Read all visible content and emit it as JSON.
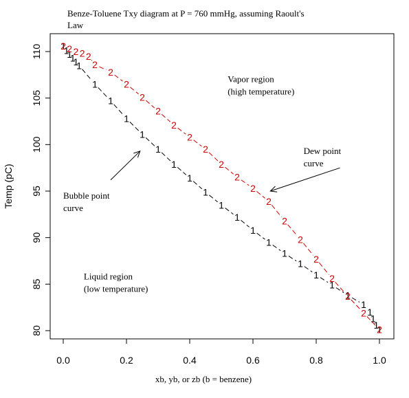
{
  "chart_data": {
    "type": "line",
    "title": "Benze-Toluene Txy diagram at P = 760 mmHg, assuming Raoult's Law",
    "title_lines": [
      "Benze-Toluene Txy diagram at P = 760 mmHg, assuming Raoult's",
      "Law"
    ],
    "xlabel": "xb, yb, or zb (b = benzene)",
    "ylabel": "Temp (pC)",
    "xlim": [
      0,
      1
    ],
    "ylim": [
      79.4,
      111
    ],
    "x_ticks": [
      0.0,
      0.2,
      0.4,
      0.6,
      0.8,
      1.0
    ],
    "x_tick_labels": [
      "0.0",
      "0.2",
      "0.4",
      "0.6",
      "0.8",
      "1.0"
    ],
    "y_ticks": [
      80,
      85,
      90,
      95,
      100,
      105,
      110
    ],
    "y_tick_labels": [
      "80",
      "85",
      "90",
      "95",
      "100",
      "105",
      "110"
    ],
    "grid": false,
    "series": [
      {
        "marker": "1",
        "color": "#000000",
        "linestyle": "dashed",
        "x": [
          0.0,
          0.01,
          0.02,
          0.03,
          0.04,
          0.05,
          0.1,
          0.15,
          0.2,
          0.25,
          0.3,
          0.35,
          0.4,
          0.45,
          0.5,
          0.55,
          0.6,
          0.65,
          0.7,
          0.75,
          0.8,
          0.85,
          0.9,
          0.95,
          0.97,
          0.98,
          0.99,
          1.0
        ],
        "y": [
          110.6,
          110.1,
          109.7,
          109.3,
          108.9,
          108.5,
          106.5,
          104.7,
          102.8,
          101.1,
          99.5,
          97.9,
          96.4,
          94.9,
          93.5,
          92.2,
          90.8,
          89.5,
          88.3,
          87.2,
          86.0,
          84.9,
          83.8,
          82.8,
          82.0,
          81.3,
          80.6,
          80.1
        ]
      },
      {
        "marker": "2",
        "color": "#cc0000",
        "linestyle": "dashed",
        "x": [
          0.0,
          0.02,
          0.04,
          0.06,
          0.08,
          0.1,
          0.15,
          0.2,
          0.25,
          0.3,
          0.35,
          0.4,
          0.45,
          0.5,
          0.55,
          0.6,
          0.65,
          0.7,
          0.75,
          0.8,
          0.85,
          0.9,
          0.95,
          1.0
        ],
        "y": [
          110.6,
          110.3,
          110.0,
          109.8,
          109.5,
          108.6,
          107.8,
          106.5,
          105.1,
          103.6,
          102.1,
          100.8,
          99.5,
          97.9,
          96.5,
          95.3,
          93.9,
          91.8,
          89.8,
          87.7,
          85.6,
          83.7,
          81.9,
          80.1
        ]
      }
    ],
    "annotations": [
      {
        "lines": [
          "Vapor region",
          "(high temperature)"
        ],
        "x": 0.52,
        "y": 106.7
      },
      {
        "lines": [
          "Dew point",
          "curve"
        ],
        "x": 0.76,
        "y": 99.0
      },
      {
        "lines": [
          "Bubble point",
          "curve"
        ],
        "x": 0.0,
        "y": 94.2
      },
      {
        "lines": [
          "Liquid region",
          "(low temperature)"
        ],
        "x": 0.065,
        "y": 85.5
      }
    ],
    "arrows": [
      {
        "from": [
          0.15,
          96.2
        ],
        "to": [
          0.243,
          99.3
        ]
      },
      {
        "from": [
          0.875,
          97.5
        ],
        "to": [
          0.655,
          95.0
        ]
      }
    ]
  }
}
